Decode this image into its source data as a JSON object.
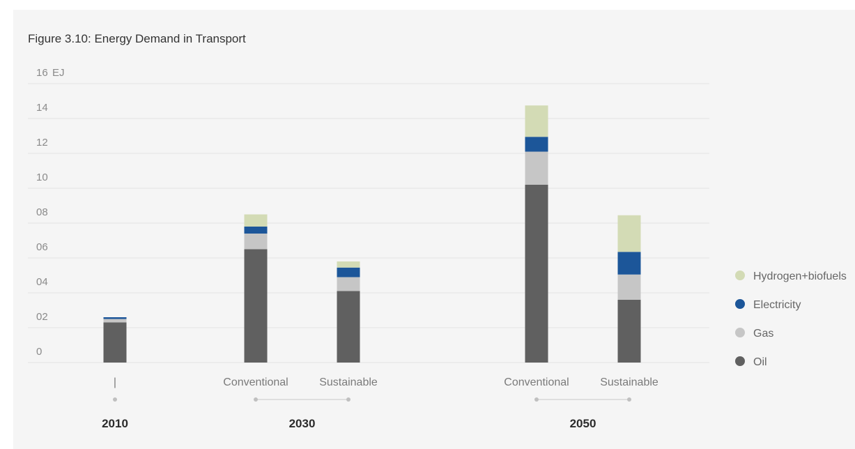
{
  "figure_title": "Figure 3.10:  Energy Demand in Transport",
  "chart_data": {
    "type": "bar",
    "stacked": true,
    "title": "Figure 3.10:  Energy Demand in Transport",
    "unit": "EJ",
    "ylim": [
      0,
      16
    ],
    "yticks": [
      {
        "value": 0,
        "label": "0"
      },
      {
        "value": 2,
        "label": "02"
      },
      {
        "value": 4,
        "label": "04"
      },
      {
        "value": 6,
        "label": "06"
      },
      {
        "value": 8,
        "label": "08"
      },
      {
        "value": 10,
        "label": "10"
      },
      {
        "value": 12,
        "label": "12"
      },
      {
        "value": 14,
        "label": "14"
      },
      {
        "value": 16,
        "label": "16"
      }
    ],
    "grid": true,
    "legend_position": "right",
    "categories": [
      "|",
      "Conventional",
      "Sustainable",
      "Conventional",
      "Sustainable"
    ],
    "groups": [
      {
        "label": "2010",
        "members": [
          0
        ]
      },
      {
        "label": "2030",
        "members": [
          1,
          2
        ]
      },
      {
        "label": "2050",
        "members": [
          3,
          4
        ]
      }
    ],
    "series": [
      {
        "name": "Oil",
        "color": "#606060",
        "values": [
          2.3,
          6.5,
          4.1,
          10.2,
          3.6
        ]
      },
      {
        "name": "Gas",
        "color": "#c6c6c6",
        "values": [
          0.2,
          0.9,
          0.8,
          1.9,
          1.45
        ]
      },
      {
        "name": "Electricity",
        "color": "#1c5699",
        "values": [
          0.1,
          0.4,
          0.55,
          0.85,
          1.3
        ]
      },
      {
        "name": "Hydrogen+biofuels",
        "color": "#d3dbb5",
        "values": [
          0.0,
          0.7,
          0.35,
          1.8,
          2.1
        ]
      }
    ]
  }
}
